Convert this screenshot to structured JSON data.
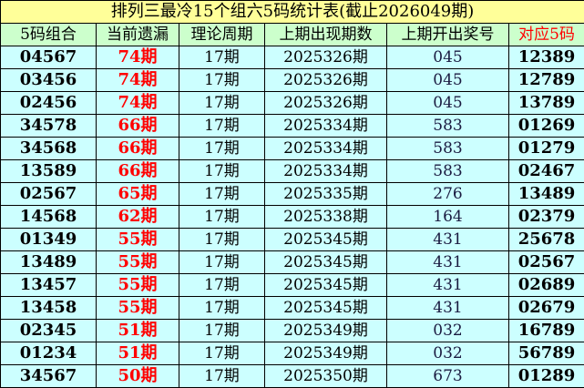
{
  "title": "排列三最冷15个组六5码统计表(截止2026049期)",
  "headers": [
    "5码组合",
    "当前遗漏",
    "理论周期",
    "上期出现期数",
    "上期开出奖号",
    "对应5码"
  ],
  "colors": {
    "title_bg": "#FFFF99",
    "header_bg": "#CCFFCC",
    "row_bg": "#CCFFFF",
    "miss_text": "#FF0000"
  },
  "rows": [
    {
      "combo": "04567",
      "miss": "74期",
      "cycle": "17期",
      "last_issue": "2025326期",
      "prize": "045",
      "match": "12389"
    },
    {
      "combo": "03456",
      "miss": "74期",
      "cycle": "17期",
      "last_issue": "2025326期",
      "prize": "045",
      "match": "12789"
    },
    {
      "combo": "02456",
      "miss": "74期",
      "cycle": "17期",
      "last_issue": "2025326期",
      "prize": "045",
      "match": "13789"
    },
    {
      "combo": "34578",
      "miss": "66期",
      "cycle": "17期",
      "last_issue": "2025334期",
      "prize": "583",
      "match": "01269"
    },
    {
      "combo": "34568",
      "miss": "66期",
      "cycle": "17期",
      "last_issue": "2025334期",
      "prize": "583",
      "match": "01279"
    },
    {
      "combo": "13589",
      "miss": "66期",
      "cycle": "17期",
      "last_issue": "2025334期",
      "prize": "583",
      "match": "02467"
    },
    {
      "combo": "02567",
      "miss": "65期",
      "cycle": "17期",
      "last_issue": "2025335期",
      "prize": "276",
      "match": "13489"
    },
    {
      "combo": "14568",
      "miss": "62期",
      "cycle": "17期",
      "last_issue": "2025338期",
      "prize": "164",
      "match": "02379"
    },
    {
      "combo": "01349",
      "miss": "55期",
      "cycle": "17期",
      "last_issue": "2025345期",
      "prize": "431",
      "match": "25678"
    },
    {
      "combo": "13489",
      "miss": "55期",
      "cycle": "17期",
      "last_issue": "2025345期",
      "prize": "431",
      "match": "02567"
    },
    {
      "combo": "13457",
      "miss": "55期",
      "cycle": "17期",
      "last_issue": "2025345期",
      "prize": "431",
      "match": "02689"
    },
    {
      "combo": "13458",
      "miss": "55期",
      "cycle": "17期",
      "last_issue": "2025345期",
      "prize": "431",
      "match": "02679"
    },
    {
      "combo": "02345",
      "miss": "51期",
      "cycle": "17期",
      "last_issue": "2025349期",
      "prize": "032",
      "match": "16789"
    },
    {
      "combo": "01234",
      "miss": "51期",
      "cycle": "17期",
      "last_issue": "2025349期",
      "prize": "032",
      "match": "56789"
    },
    {
      "combo": "34567",
      "miss": "50期",
      "cycle": "17期",
      "last_issue": "2025350期",
      "prize": "673",
      "match": "01289"
    }
  ]
}
